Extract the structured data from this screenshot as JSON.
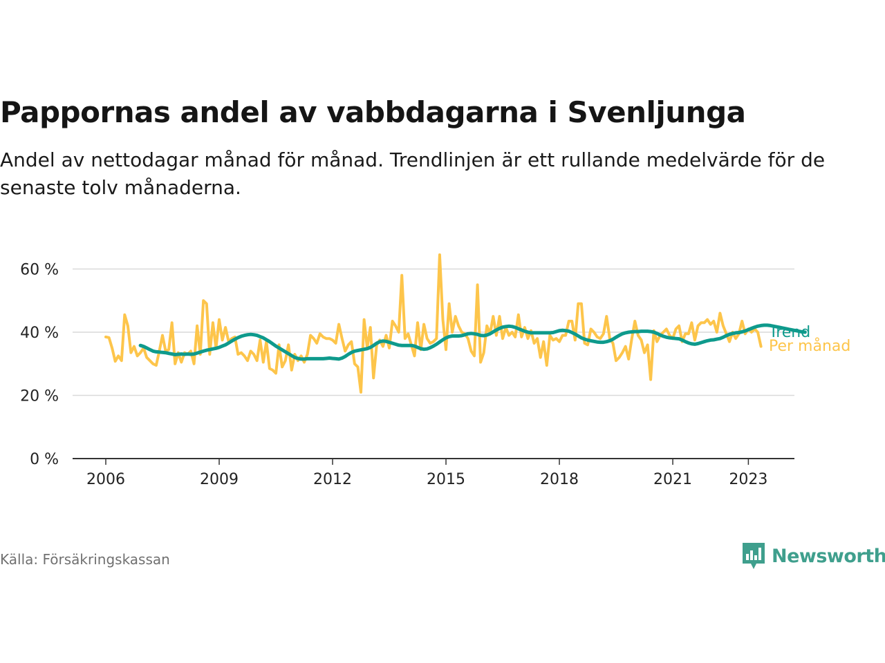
{
  "title": "Pappornas andel av vabbdagarna i Svenljunga",
  "subtitle": "Andel av nettodagar månad för månad. Trendlinjen är ett rullande medelvärde för de senaste tolv månaderna.",
  "source": "Källa: Försäkringskassan",
  "brand": "Newsworthy",
  "colors": {
    "monthly": "#fdc54b",
    "trend": "#0e9a8c",
    "grid": "#d9d9d9",
    "axis": "#333333",
    "brand": "#3f9f8d"
  },
  "chart_data": {
    "type": "line",
    "ylim": [
      0,
      70
    ],
    "yticks": [
      0,
      20,
      40,
      60
    ],
    "ytick_labels": [
      "0 %",
      "20 %",
      "40 %",
      "60 %"
    ],
    "xlim": [
      2006,
      2024.2
    ],
    "xticks": [
      2006,
      2009,
      2012,
      2015,
      2018,
      2021,
      2023
    ],
    "xtick_labels": [
      "2006",
      "2009",
      "2012",
      "2015",
      "2018",
      "2021",
      "2023"
    ],
    "grid": true,
    "legend": "inline-right",
    "series": [
      {
        "name": "Per månad",
        "start": 2006.0,
        "step": 0.08333,
        "values": [
          38.5,
          38.3,
          35.0,
          30.8,
          32.5,
          31.0,
          45.5,
          42.0,
          33.5,
          35.5,
          32.5,
          33.5,
          35.0,
          32.0,
          31.0,
          30.0,
          29.5,
          34.0,
          39.0,
          34.0,
          34.5,
          43.0,
          30.0,
          33.5,
          30.5,
          33.5,
          33.0,
          34.0,
          30.0,
          42.0,
          33.0,
          50.0,
          49.0,
          33.0,
          43.0,
          35.0,
          44.0,
          37.5,
          41.5,
          37.0,
          38.0,
          38.5,
          33.0,
          33.5,
          32.5,
          31.0,
          34.0,
          33.0,
          31.0,
          37.5,
          30.5,
          37.0,
          28.5,
          28.0,
          27.0,
          36.0,
          29.0,
          31.0,
          36.0,
          28.0,
          33.0,
          31.0,
          32.5,
          30.5,
          33.0,
          39.0,
          38.0,
          36.5,
          39.5,
          38.5,
          38.0,
          38.0,
          37.5,
          36.5,
          42.5,
          38.0,
          34.0,
          36.0,
          37.0,
          30.0,
          29.0,
          21.0,
          44.0,
          35.0,
          41.5,
          25.5,
          36.0,
          37.5,
          35.5,
          39.0,
          35.0,
          43.5,
          42.0,
          40.0,
          58.0,
          38.0,
          39.5,
          36.0,
          32.5,
          43.0,
          34.5,
          42.5,
          38.0,
          36.5,
          37.0,
          38.0,
          64.5,
          44.0,
          34.5,
          49.0,
          40.0,
          45.0,
          42.0,
          40.0,
          39.5,
          38.0,
          34.0,
          32.5,
          55.0,
          30.5,
          33.5,
          42.0,
          39.5,
          45.0,
          39.0,
          45.0,
          38.0,
          41.5,
          39.0,
          40.0,
          38.5,
          45.5,
          38.5,
          41.5,
          38.0,
          40.5,
          36.5,
          38.0,
          32.0,
          37.0,
          29.5,
          39.0,
          37.5,
          38.0,
          37.0,
          39.0,
          39.0,
          43.5,
          43.5,
          37.5,
          49.0,
          49.0,
          36.5,
          36.0,
          41.0,
          40.0,
          38.5,
          38.0,
          39.5,
          45.0,
          38.0,
          36.5,
          31.0,
          32.0,
          33.5,
          35.5,
          31.5,
          38.0,
          43.5,
          39.0,
          37.5,
          33.5,
          36.0,
          25.0,
          40.5,
          37.0,
          39.0,
          40.0,
          41.0,
          39.0,
          38.0,
          41.0,
          42.0,
          37.0,
          39.5,
          39.5,
          43.0,
          37.5,
          42.0,
          43.0,
          43.0,
          44.0,
          42.5,
          43.5,
          40.0,
          46.0,
          42.0,
          39.5,
          37.0,
          40.0,
          38.0,
          39.5,
          43.5,
          39.5,
          41.0,
          40.0,
          41.0,
          40.0,
          35.5
        ]
      },
      {
        "name": "Trend",
        "start": 2006.917,
        "step": 0.08333,
        "values": [
          35.8,
          35.5,
          35.0,
          34.5,
          34.0,
          33.8,
          33.7,
          33.6,
          33.5,
          33.3,
          33.1,
          32.9,
          33.0,
          33.1,
          33.0,
          33.1,
          33.0,
          33.1,
          33.4,
          33.7,
          34.0,
          34.3,
          34.5,
          34.7,
          34.9,
          35.2,
          35.6,
          36.0,
          36.6,
          37.2,
          37.8,
          38.3,
          38.7,
          39.0,
          39.2,
          39.3,
          39.2,
          39.0,
          38.6,
          38.2,
          37.6,
          37.0,
          36.3,
          35.6,
          35.0,
          34.4,
          33.8,
          33.2,
          32.6,
          32.0,
          31.7,
          31.5,
          31.5,
          31.6,
          31.6,
          31.6,
          31.6,
          31.6,
          31.6,
          31.7,
          31.8,
          31.7,
          31.6,
          31.5,
          31.8,
          32.3,
          33.0,
          33.6,
          34.0,
          34.2,
          34.4,
          34.6,
          34.8,
          35.2,
          35.8,
          36.5,
          37.0,
          37.2,
          37.1,
          36.8,
          36.5,
          36.2,
          35.9,
          35.8,
          35.8,
          35.8,
          35.8,
          35.6,
          35.2,
          34.8,
          34.6,
          34.7,
          35.1,
          35.6,
          36.2,
          36.9,
          37.6,
          38.2,
          38.6,
          38.8,
          38.8,
          38.8,
          38.9,
          39.2,
          39.5,
          39.6,
          39.5,
          39.3,
          39.0,
          38.9,
          39.1,
          39.5,
          40.1,
          40.7,
          41.2,
          41.6,
          41.8,
          41.9,
          41.8,
          41.5,
          41.1,
          40.7,
          40.3,
          40.0,
          39.8,
          39.8,
          39.8,
          39.8,
          39.8,
          39.8,
          39.8,
          39.9,
          40.2,
          40.5,
          40.6,
          40.5,
          40.3,
          39.9,
          39.4,
          38.8,
          38.2,
          37.8,
          37.5,
          37.3,
          37.1,
          36.9,
          36.8,
          36.8,
          37.0,
          37.3,
          37.8,
          38.4,
          39.0,
          39.5,
          39.8,
          40.0,
          40.1,
          40.2,
          40.2,
          40.3,
          40.3,
          40.3,
          40.2,
          40.0,
          39.6,
          39.1,
          38.7,
          38.4,
          38.2,
          38.1,
          38.0,
          37.9,
          37.5,
          37.0,
          36.6,
          36.3,
          36.2,
          36.4,
          36.7,
          37.0,
          37.3,
          37.5,
          37.6,
          37.8,
          38.0,
          38.4,
          38.9,
          39.3,
          39.6,
          39.8,
          39.9,
          40.1,
          40.4,
          40.8,
          41.2,
          41.6,
          41.9,
          42.1,
          42.2,
          42.2,
          42.1,
          41.9,
          41.7,
          41.5,
          41.3,
          41.1,
          40.9,
          40.7,
          40.5,
          40.3,
          40.1,
          40.0
        ]
      }
    ],
    "labels": {
      "trend": "Trend",
      "monthly": "Per månad"
    }
  }
}
